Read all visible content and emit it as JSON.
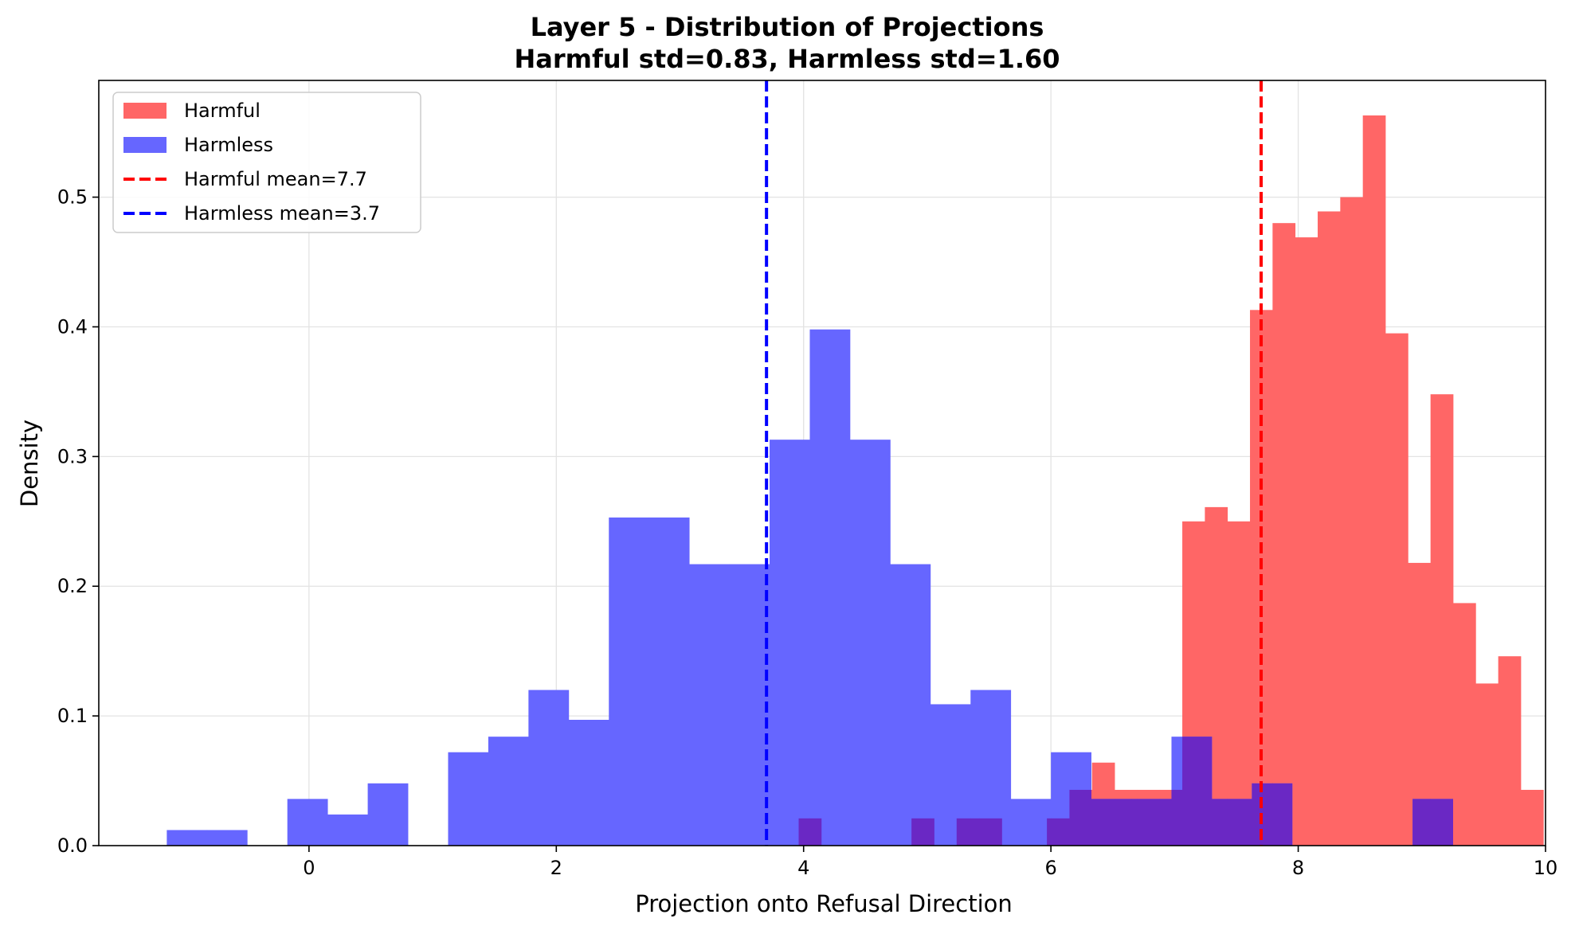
{
  "chart_data": {
    "type": "histogram",
    "title": "Layer 5 - Distribution of Projections",
    "subtitle": "Harmful std=0.83, Harmless std=1.60",
    "xlabel": "Projection onto Refusal Direction",
    "ylabel": "Density",
    "xlim": [
      -1.7,
      10
    ],
    "ylim": [
      0,
      0.59
    ],
    "xticks": [
      0,
      2,
      4,
      6,
      8,
      10
    ],
    "xtick_labels": [
      "0",
      "2",
      "4",
      "6",
      "8",
      "10"
    ],
    "yticks": [
      0.0,
      0.1,
      0.2,
      0.3,
      0.4,
      0.5
    ],
    "ytick_labels": [
      "0.0",
      "0.1",
      "0.2",
      "0.3",
      "0.4",
      "0.5"
    ],
    "grid": true,
    "legend_position": "upper-left",
    "colors": {
      "harmful_fill": "#ff6666",
      "harmless_fill": "#6666ff",
      "harmful_line": "#ff0000",
      "harmless_line": "#0000ff"
    },
    "series": [
      {
        "name": "Harmful",
        "color": "#ff6666",
        "bin_start": 3.96,
        "bin_width": 0.1825,
        "values": [
          0.021,
          0,
          0,
          0,
          0,
          0.021,
          0,
          0.021,
          0.021,
          0,
          0,
          0.021,
          0.043,
          0.064,
          0.043,
          0.043,
          0.043,
          0.25,
          0.261,
          0.25,
          0.413,
          0.48,
          0.469,
          0.489,
          0.5,
          0.563,
          0.395,
          0.218,
          0.348,
          0.187,
          0.125,
          0.146,
          0.043
        ]
      },
      {
        "name": "Harmless",
        "color": "#6666ff",
        "bin_start": -1.15,
        "bin_width": 0.325,
        "values": [
          0.012,
          0.012,
          0,
          0.036,
          0.024,
          0.048,
          0,
          0.072,
          0.084,
          0.12,
          0.097,
          0.253,
          0.253,
          0.217,
          0.217,
          0.313,
          0.398,
          0.313,
          0.217,
          0.109,
          0.12,
          0.036,
          0.072,
          0.036,
          0.036,
          0.084,
          0.036,
          0.048,
          0,
          0,
          0,
          0.036
        ]
      }
    ],
    "mean_lines": [
      {
        "name": "Harmful mean=7.7",
        "x": 7.7,
        "color": "#ff0000"
      },
      {
        "name": "Harmless mean=3.7",
        "x": 3.7,
        "color": "#0000ff"
      }
    ],
    "legend": [
      {
        "label": "Harmful",
        "kind": "patch",
        "color": "#ff6666"
      },
      {
        "label": "Harmless",
        "kind": "patch",
        "color": "#6666ff"
      },
      {
        "label": "Harmful mean=7.7",
        "kind": "dashed-line",
        "color": "#ff0000"
      },
      {
        "label": "Harmless mean=3.7",
        "kind": "dashed-line",
        "color": "#0000ff"
      }
    ]
  }
}
